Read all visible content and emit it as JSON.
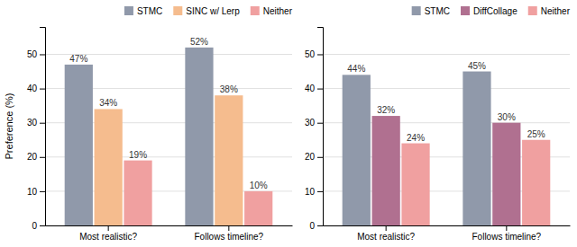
{
  "chart_data": [
    {
      "type": "bar",
      "categories": [
        "Most realistic?",
        "Follows timeline?"
      ],
      "series": [
        {
          "name": "STMC",
          "color": "#9099aa",
          "values": [
            47,
            52
          ],
          "value_labels": [
            "47%",
            "52%"
          ]
        },
        {
          "name": "SINC w/ Lerp",
          "color": "#f5bc8e",
          "values": [
            34,
            38
          ],
          "value_labels": [
            "34%",
            "38%"
          ]
        },
        {
          "name": "Neither",
          "color": "#f0a0a0",
          "values": [
            19,
            10
          ],
          "value_labels": [
            "19%",
            "10%"
          ]
        }
      ],
      "ylabel": "Preference (%)",
      "ylim": [
        0,
        58
      ],
      "yticks": [
        0,
        10,
        20,
        30,
        40,
        50
      ],
      "grid": true,
      "legend": "upper right",
      "data_labels": true
    },
    {
      "type": "bar",
      "categories": [
        "Most realistic?",
        "Follows timeline?"
      ],
      "series": [
        {
          "name": "STMC",
          "color": "#9099aa",
          "values": [
            44,
            45
          ],
          "value_labels": [
            "44%",
            "45%"
          ]
        },
        {
          "name": "DiffCollage",
          "color": "#b07090",
          "values": [
            32,
            30
          ],
          "value_labels": [
            "32%",
            "30%"
          ]
        },
        {
          "name": "Neither",
          "color": "#f0a0a0",
          "values": [
            24,
            25
          ],
          "value_labels": [
            "24%",
            "25%"
          ]
        }
      ],
      "ylim": [
        0,
        58
      ],
      "yticks": [
        0,
        10,
        20,
        30,
        40,
        50
      ],
      "grid": true,
      "legend": "upper right",
      "data_labels": true
    }
  ]
}
